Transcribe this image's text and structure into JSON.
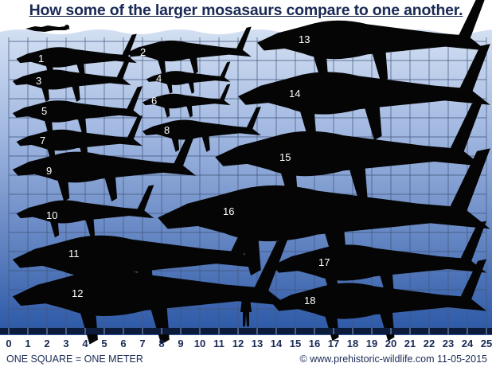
{
  "title": "How some of the larger mosasaurs compare to one another.",
  "scale_caption": "ONE SQUARE = ONE METER",
  "credit": "© www.prehistoric-wildlife.com 11-05-2015",
  "axis": {
    "unit": "meter",
    "min": 0,
    "max": 25,
    "ticks": [
      0,
      1,
      2,
      3,
      4,
      5,
      6,
      7,
      8,
      9,
      10,
      11,
      12,
      13,
      14,
      15,
      16,
      17,
      18,
      19,
      20,
      21,
      22,
      23,
      24,
      25
    ]
  },
  "colors": {
    "sky": "#ffffff",
    "water_top": "#c7d6ee",
    "water_bottom": "#2d5aa8",
    "grid": "#41557a",
    "silhouette": "#050505",
    "label": "#ffffff",
    "text": "#1a2a55"
  },
  "reference": {
    "human": "human figure for scale",
    "swimmer": "swimming diver at surface"
  },
  "mosasaurs": [
    {
      "label": "1",
      "start_m": 0.4,
      "length_m": 6.3
    },
    {
      "label": "2",
      "start_m": 6.2,
      "length_m": 6.5
    },
    {
      "label": "3",
      "start_m": 0.2,
      "length_m": 6.2
    },
    {
      "label": "4",
      "start_m": 7.2,
      "length_m": 4.4
    },
    {
      "label": "5",
      "start_m": 0.2,
      "length_m": 6.8
    },
    {
      "label": "6",
      "start_m": 7.0,
      "length_m": 4.6
    },
    {
      "label": "7",
      "start_m": 0.4,
      "length_m": 6.6
    },
    {
      "label": "8",
      "start_m": 7.0,
      "length_m": 6.2
    },
    {
      "label": "9",
      "start_m": 0.2,
      "length_m": 9.6
    },
    {
      "label": "10",
      "start_m": 0.4,
      "length_m": 7.2
    },
    {
      "label": "11",
      "start_m": 0.2,
      "length_m": 13.0
    },
    {
      "label": "12",
      "start_m": 0.2,
      "length_m": 14.4
    },
    {
      "label": "13",
      "start_m": 13.0,
      "length_m": 12.0
    },
    {
      "label": "14",
      "start_m": 12.0,
      "length_m": 13.2
    },
    {
      "label": "15",
      "start_m": 10.8,
      "length_m": 14.0
    },
    {
      "label": "16",
      "start_m": 7.8,
      "length_m": 17.4
    },
    {
      "label": "17",
      "start_m": 13.8,
      "length_m": 11.2
    },
    {
      "label": "18",
      "start_m": 13.8,
      "length_m": 11.2
    }
  ]
}
